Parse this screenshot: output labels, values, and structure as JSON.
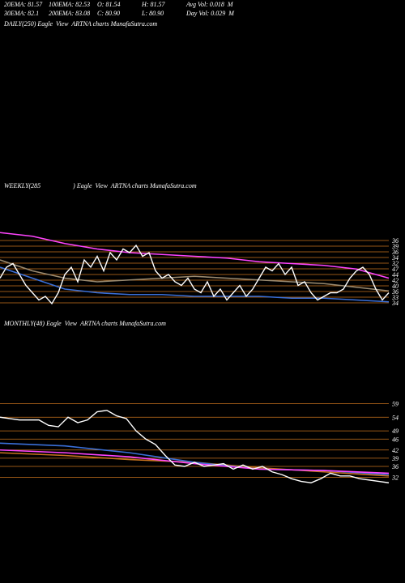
{
  "header": {
    "rows": [
      [
        "20EMA: 81.57",
        "100EMA: 82.53",
        "O: 81.54",
        "H: 81.57",
        "Avg Vol: 0.018  M"
      ],
      [
        "30EMA: 82.1",
        "200EMA: 83.08",
        "C: 80.90",
        "L: 80.90",
        "Day Vol: 0.029  M"
      ]
    ]
  },
  "daily": {
    "title": "DAILY(250) Eagle  View  ARTNA charts MunafaSutra.com"
  },
  "chart_data": [
    {
      "type": "line",
      "title": "WEEKLY(285                    ) Eagle  View  ARTNA charts MunafaSutra.com",
      "ylim": [
        30,
        50
      ],
      "levels": [
        "36",
        "39",
        "36",
        "34",
        "32",
        "47",
        "44",
        "42",
        "40",
        "36",
        "33",
        "34"
      ],
      "level_color": "#c8731e",
      "series": [
        {
          "color": "#ff44ff",
          "values": [
            49.5,
            48.5,
            46.5,
            45,
            44,
            43.5,
            43,
            42.5,
            41.5,
            41,
            40.5,
            39.5,
            37
          ]
        },
        {
          "color": "#3a6fd8",
          "values": [
            40,
            37,
            34,
            33,
            32.5,
            32.5,
            32,
            32,
            32,
            31.5,
            31.5,
            31,
            30.5
          ]
        },
        {
          "color": "#9a8a70",
          "values": [
            42,
            39,
            37,
            36,
            36.5,
            37,
            37.5,
            37,
            36.5,
            36,
            35.5,
            34.5,
            33.5
          ]
        },
        {
          "color": "#ffffff",
          "values": [
            37,
            40,
            41,
            38,
            35,
            33,
            31,
            32,
            30,
            33,
            38,
            40,
            36,
            42,
            40,
            43,
            39,
            44,
            42,
            45,
            44,
            46,
            43,
            44,
            39,
            37,
            38,
            36,
            35,
            37,
            34,
            33,
            36,
            32,
            34,
            31,
            33,
            35,
            32,
            34,
            37,
            40,
            39,
            41,
            38,
            40,
            35,
            36,
            33,
            31,
            32,
            33,
            33,
            34,
            37,
            39,
            40,
            38,
            34,
            31,
            33
          ]
        }
      ]
    },
    {
      "type": "line",
      "title": "MONTHLY(48) Eagle  View  ARTNA charts MunafaSutra.com",
      "ylim": [
        28,
        60
      ],
      "yticks": [
        59,
        54,
        49,
        46,
        42,
        39,
        36,
        32
      ],
      "grid": true,
      "grid_color": "#c8731e",
      "series": [
        {
          "color": "#c8731e",
          "values": [
            41,
            40,
            38.5,
            37.5,
            35.5,
            34,
            32.5
          ]
        },
        {
          "color": "#3a6fd8",
          "values": [
            44.5,
            43.5,
            41,
            37.5,
            35,
            34.5,
            33
          ]
        },
        {
          "color": "#ff44ff",
          "values": [
            42,
            41,
            39.5,
            37,
            35,
            34.5,
            33.5
          ]
        },
        {
          "color": "#ffffff",
          "values": [
            54,
            53.5,
            53,
            53,
            53,
            51,
            50.5,
            54,
            52,
            53,
            56,
            56.5,
            54.5,
            53.5,
            49,
            46,
            44,
            40,
            36.5,
            36,
            37.5,
            36,
            36.5,
            37,
            35,
            36.5,
            35,
            36,
            34,
            33,
            31.5,
            30.5,
            30,
            31.5,
            33.5,
            32.5,
            32.5,
            31.5,
            31,
            30.5,
            30
          ]
        }
      ]
    }
  ]
}
